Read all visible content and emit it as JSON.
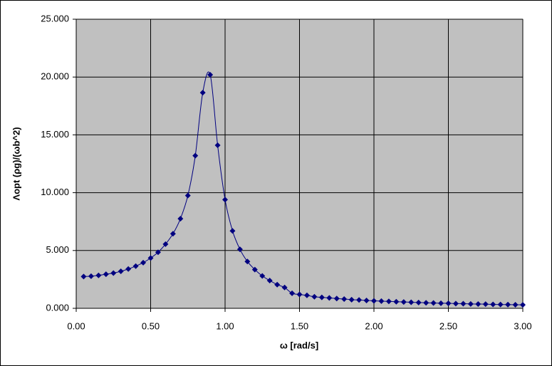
{
  "chart_data": {
    "type": "line",
    "x_label": "ω [rad/s]",
    "y_label": "Λopt (ρg)/(ωb^2)",
    "x": [
      0.05,
      0.1,
      0.15,
      0.2,
      0.25,
      0.3,
      0.35,
      0.4,
      0.45,
      0.5,
      0.55,
      0.6,
      0.65,
      0.7,
      0.75,
      0.8,
      0.85,
      0.9,
      0.95,
      1.0,
      1.05,
      1.1,
      1.15,
      1.2,
      1.25,
      1.3,
      1.35,
      1.4,
      1.45,
      1.5,
      1.55,
      1.6,
      1.65,
      1.7,
      1.75,
      1.8,
      1.85,
      1.9,
      1.95,
      2.0,
      2.05,
      2.1,
      2.15,
      2.2,
      2.25,
      2.3,
      2.35,
      2.4,
      2.45,
      2.5,
      2.55,
      2.6,
      2.65,
      2.7,
      2.75,
      2.8,
      2.85,
      2.9,
      2.95,
      3.0
    ],
    "series": [
      {
        "color": "#000080",
        "values": [
          2.75,
          2.78,
          2.85,
          2.95,
          3.05,
          3.2,
          3.4,
          3.65,
          3.95,
          4.35,
          4.85,
          5.55,
          6.45,
          7.75,
          9.75,
          13.2,
          18.65,
          20.2,
          14.1,
          9.4,
          6.7,
          5.1,
          4.05,
          3.35,
          2.8,
          2.4,
          2.05,
          1.8,
          1.3,
          1.2,
          1.12,
          1.0,
          0.95,
          0.9,
          0.85,
          0.8,
          0.75,
          0.72,
          0.68,
          0.65,
          0.62,
          0.6,
          0.57,
          0.55,
          0.52,
          0.5,
          0.48,
          0.46,
          0.44,
          0.43,
          0.41,
          0.4,
          0.38,
          0.37,
          0.36,
          0.34,
          0.33,
          0.32,
          0.31,
          0.3
        ]
      }
    ],
    "xlim": [
      0,
      3
    ],
    "ylim": [
      0,
      25
    ],
    "xticks": [
      {
        "value": 0,
        "label": "0.00"
      },
      {
        "value": 0.5,
        "label": "0.50"
      },
      {
        "value": 1,
        "label": "1.00"
      },
      {
        "value": 1.5,
        "label": "1.50"
      },
      {
        "value": 2,
        "label": "2.00"
      },
      {
        "value": 2.5,
        "label": "2.50"
      },
      {
        "value": 3,
        "label": "3.00"
      }
    ],
    "yticks": [
      {
        "value": 0,
        "label": "0.000"
      },
      {
        "value": 5,
        "label": "5.000"
      },
      {
        "value": 10,
        "label": "10.000"
      },
      {
        "value": 15,
        "label": "15.000"
      },
      {
        "value": 20,
        "label": "20.000"
      },
      {
        "value": 25,
        "label": "25.000"
      }
    ],
    "grid": true,
    "plot_background": "#c0c0c0"
  }
}
